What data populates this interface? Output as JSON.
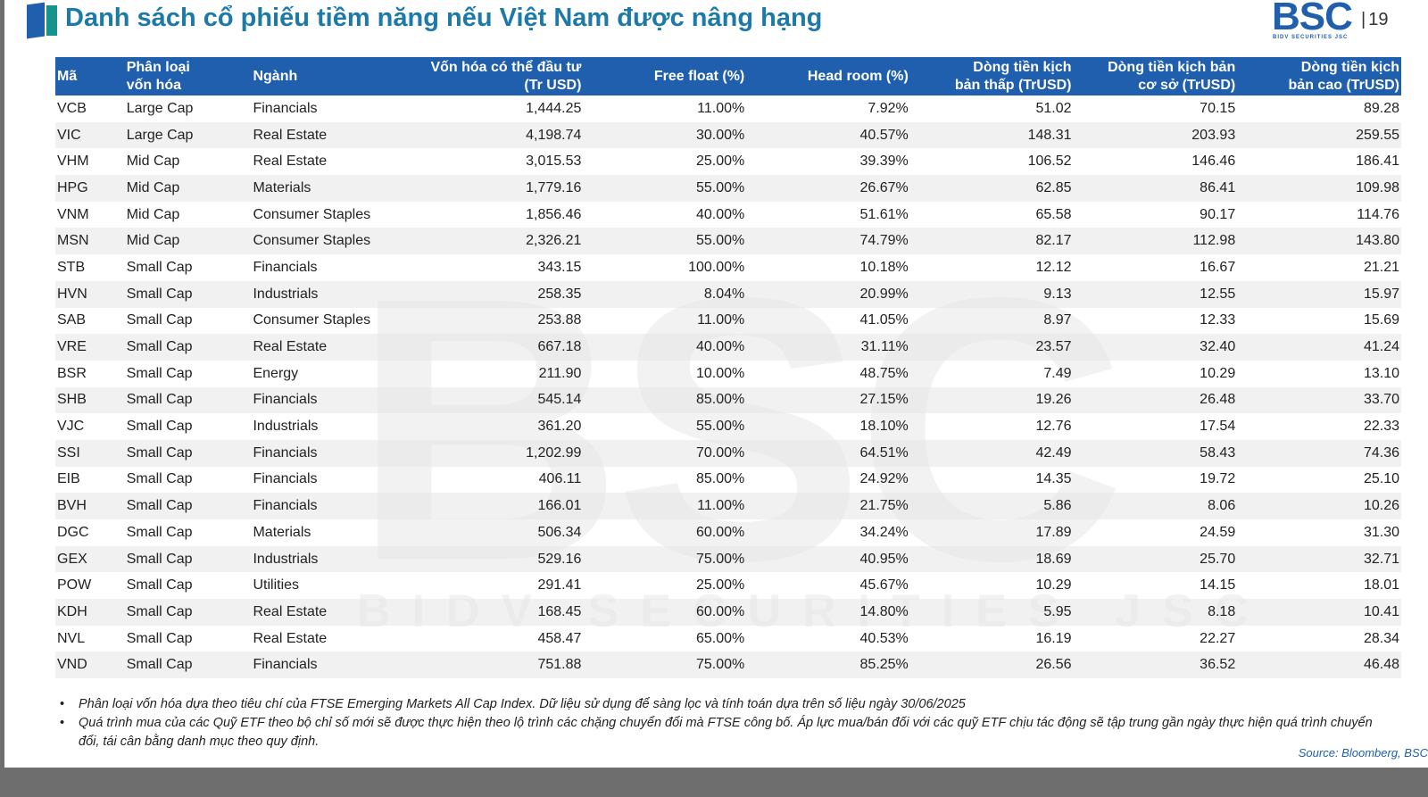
{
  "header": {
    "title": "Danh sách cổ phiếu tiềm năng nếu Việt Nam được nâng hạng",
    "page_number": "19",
    "logo": "BSC",
    "logo_subtitle": "BIDV SECURITIES JSC"
  },
  "watermark": {
    "logo": "BSC",
    "text": "BIDV SECURITIES JSC"
  },
  "table": {
    "headers": [
      [
        "Mã"
      ],
      [
        "Phân loại",
        "vốn hóa"
      ],
      [
        "Ngành"
      ],
      [
        "Vốn hóa có thể đầu tư",
        "(Tr USD)"
      ],
      [
        "Free float (%)"
      ],
      [
        "Head room (%)"
      ],
      [
        "Dòng tiền kịch",
        "bản thấp (TrUSD)"
      ],
      [
        "Dòng tiền kịch bản",
        "cơ sở (TrUSD)"
      ],
      [
        "Dòng tiền kịch",
        "bản cao (TrUSD)"
      ]
    ],
    "rows": [
      [
        "VCB",
        "Large Cap",
        "Financials",
        "1,444.25",
        "11.00%",
        "7.92%",
        "51.02",
        "70.15",
        "89.28"
      ],
      [
        "VIC",
        "Large Cap",
        "Real Estate",
        "4,198.74",
        "30.00%",
        "40.57%",
        "148.31",
        "203.93",
        "259.55"
      ],
      [
        "VHM",
        "Mid Cap",
        "Real Estate",
        "3,015.53",
        "25.00%",
        "39.39%",
        "106.52",
        "146.46",
        "186.41"
      ],
      [
        "HPG",
        "Mid Cap",
        "Materials",
        "1,779.16",
        "55.00%",
        "26.67%",
        "62.85",
        "86.41",
        "109.98"
      ],
      [
        "VNM",
        "Mid Cap",
        "Consumer Staples",
        "1,856.46",
        "40.00%",
        "51.61%",
        "65.58",
        "90.17",
        "114.76"
      ],
      [
        "MSN",
        "Mid Cap",
        "Consumer Staples",
        "2,326.21",
        "55.00%",
        "74.79%",
        "82.17",
        "112.98",
        "143.80"
      ],
      [
        "STB",
        "Small Cap",
        "Financials",
        "343.15",
        "100.00%",
        "10.18%",
        "12.12",
        "16.67",
        "21.21"
      ],
      [
        "HVN",
        "Small Cap",
        "Industrials",
        "258.35",
        "8.04%",
        "20.99%",
        "9.13",
        "12.55",
        "15.97"
      ],
      [
        "SAB",
        "Small Cap",
        "Consumer Staples",
        "253.88",
        "11.00%",
        "41.05%",
        "8.97",
        "12.33",
        "15.69"
      ],
      [
        "VRE",
        "Small Cap",
        "Real Estate",
        "667.18",
        "40.00%",
        "31.11%",
        "23.57",
        "32.40",
        "41.24"
      ],
      [
        "BSR",
        "Small Cap",
        "Energy",
        "211.90",
        "10.00%",
        "48.75%",
        "7.49",
        "10.29",
        "13.10"
      ],
      [
        "SHB",
        "Small Cap",
        "Financials",
        "545.14",
        "85.00%",
        "27.15%",
        "19.26",
        "26.48",
        "33.70"
      ],
      [
        "VJC",
        "Small Cap",
        "Industrials",
        "361.20",
        "55.00%",
        "18.10%",
        "12.76",
        "17.54",
        "22.33"
      ],
      [
        "SSI",
        "Small Cap",
        "Financials",
        "1,202.99",
        "70.00%",
        "64.51%",
        "42.49",
        "58.43",
        "74.36"
      ],
      [
        "EIB",
        "Small Cap",
        "Financials",
        "406.11",
        "85.00%",
        "24.92%",
        "14.35",
        "19.72",
        "25.10"
      ],
      [
        "BVH",
        "Small Cap",
        "Financials",
        "166.01",
        "11.00%",
        "21.75%",
        "5.86",
        "8.06",
        "10.26"
      ],
      [
        "DGC",
        "Small Cap",
        "Materials",
        "506.34",
        "60.00%",
        "34.24%",
        "17.89",
        "24.59",
        "31.30"
      ],
      [
        "GEX",
        "Small Cap",
        "Industrials",
        "529.16",
        "75.00%",
        "40.95%",
        "18.69",
        "25.70",
        "32.71"
      ],
      [
        "POW",
        "Small Cap",
        "Utilities",
        "291.41",
        "25.00%",
        "45.67%",
        "10.29",
        "14.15",
        "18.01"
      ],
      [
        "KDH",
        "Small Cap",
        "Real Estate",
        "168.45",
        "60.00%",
        "14.80%",
        "5.95",
        "8.18",
        "10.41"
      ],
      [
        "NVL",
        "Small Cap",
        "Real Estate",
        "458.47",
        "65.00%",
        "40.53%",
        "16.19",
        "22.27",
        "28.34"
      ],
      [
        "VND",
        "Small Cap",
        "Financials",
        "751.88",
        "75.00%",
        "85.25%",
        "26.56",
        "36.52",
        "46.48"
      ]
    ]
  },
  "notes": [
    "Phân loại vốn hóa dựa theo tiêu chí của FTSE Emerging Markets All Cap Index. Dữ liệu sử dụng để sàng lọc và tính toán dựa trên số liệu ngày 30/06/2025",
    "Quá trình mua của các Quỹ ETF theo bộ chỉ số mới sẽ được thực hiện theo lộ trình các chặng chuyển đổi mà FTSE công bố. Áp lực mua/bán đối với các quỹ ETF chịu tác động sẽ tập trung gần ngày thực hiện quá trình chuyển đổi, tái cân bằng danh mục theo quy định."
  ],
  "source": "Source: Bloomberg, BSC"
}
